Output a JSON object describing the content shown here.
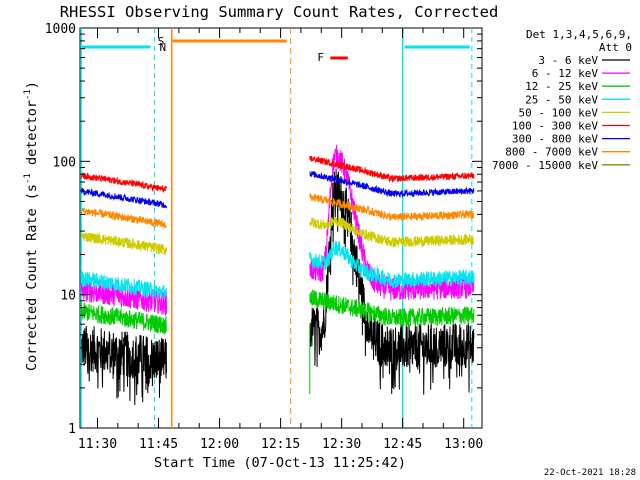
{
  "chart_data": {
    "type": "line",
    "title": "RHESSI Observing Summary Count Rates, Corrected",
    "xlabel": "Start Time (07-Oct-13 11:25:42)",
    "ylabel": "Corrected Count Rate (s",
    "ylabel_sup1": "-1",
    "ylabel_mid": " detector",
    "ylabel_sup2": "-1",
    "ylabel_end": ")",
    "yscale": "log",
    "ylim": [
      1,
      1000
    ],
    "x_ticks": [
      "11:30",
      "11:45",
      "12:00",
      "12:15",
      "12:30",
      "12:45",
      "13:00"
    ],
    "y_ticks": [
      "1",
      "10",
      "100",
      "1000"
    ],
    "legend_header": [
      "Det 1,3,4,5,6,9,",
      "Att 0"
    ],
    "timestamp": "22-Oct-2021 18:28",
    "flags": {
      "N": "N",
      "S": "S",
      "F": "F"
    },
    "series": [
      {
        "name": "3 - 6 keV",
        "color": "#000000",
        "lvl1": 3.5,
        "lvl2": 4.2,
        "peak": 55,
        "noise": 0.35
      },
      {
        "name": "6 - 12 keV",
        "color": "#ff00ff",
        "lvl1": 9.5,
        "lvl2": 11.5,
        "peak": 95,
        "noise": 0.18
      },
      {
        "name": "12 - 25 keV",
        "color": "#00cc00",
        "lvl1": 6.5,
        "lvl2": 7.0,
        "peak": 0,
        "noise": 0.14
      },
      {
        "name": "25 - 50 keV",
        "color": "#00e5ee",
        "lvl1": 11.5,
        "lvl2": 13.5,
        "peak": 6,
        "noise": 0.12
      },
      {
        "name": "50 - 100 keV",
        "color": "#cccc00",
        "lvl1": 24,
        "lvl2": 26,
        "peak": 4,
        "noise": 0.08
      },
      {
        "name": "100 - 300 keV",
        "color": "#ff0000",
        "lvl1": 68,
        "lvl2": 78,
        "peak": 0,
        "noise": 0.05
      },
      {
        "name": "300 - 800 keV",
        "color": "#0000ee",
        "lvl1": 52,
        "lvl2": 60,
        "peak": 0,
        "noise": 0.05
      },
      {
        "name": "800 - 7000 keV",
        "color": "#ff8800",
        "lvl1": 37,
        "lvl2": 40,
        "peak": 0,
        "noise": 0.06
      },
      {
        "name": "7000 - 15000 keV",
        "color": "#888800",
        "lvl1": 0,
        "lvl2": 0,
        "peak": 0,
        "noise": 0
      }
    ],
    "eclipse_1": [
      "11:47",
      "12:19"
    ],
    "saa": [
      "11:48",
      "12:17"
    ],
    "flare_bar": [
      "12:26",
      "12:33"
    ],
    "night_1": [
      "11:25:42",
      "11:44"
    ],
    "night_2": [
      "12:45",
      "13:02"
    ],
    "flare_peak_time": "12:28:30"
  }
}
